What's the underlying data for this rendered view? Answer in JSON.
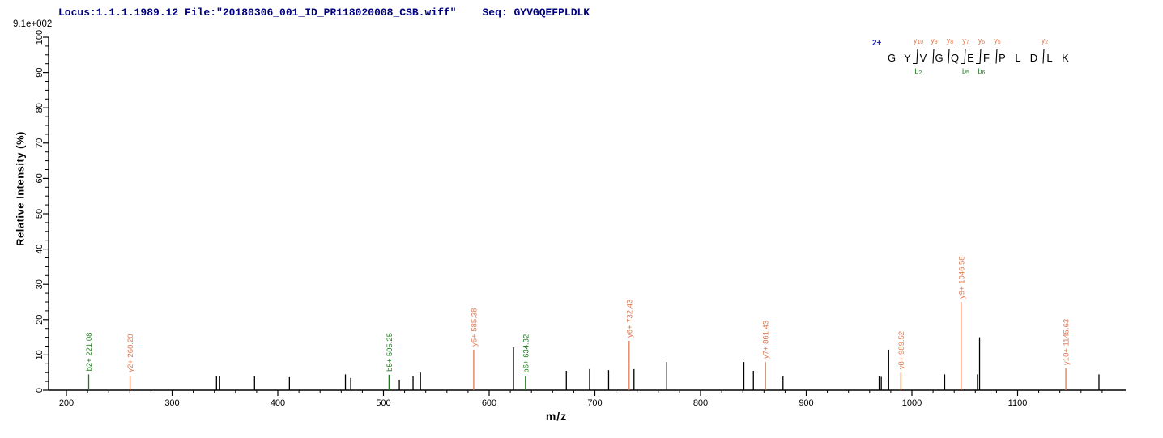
{
  "header": {
    "locus_file": "Locus:1.1.1.1989.12 File:\"20180306_001_ID_PR118020008_CSB.wiff\"",
    "seq": "Seq: GYVGQEFPLDLK"
  },
  "colors": {
    "header_text": "#000080",
    "y_ion": "#E07B52",
    "b_ion": "#1E7D1E",
    "peak": "#000000",
    "axis": "#000000",
    "charge_label": "#2222CC"
  },
  "peptide": {
    "charge": "2+",
    "residues": [
      "G",
      "Y",
      "V",
      "G",
      "Q",
      "E",
      "F",
      "P",
      "L",
      "D",
      "L",
      "K"
    ],
    "fragments": [
      {
        "bond": 2,
        "y_ion": "y10",
        "b_ion": "b2"
      },
      {
        "bond": 3,
        "y_ion": "y9"
      },
      {
        "bond": 4,
        "y_ion": "y8"
      },
      {
        "bond": 5,
        "y_ion": "y7",
        "b_ion": "b5"
      },
      {
        "bond": 6,
        "y_ion": "y6",
        "b_ion": "b6"
      },
      {
        "bond": 7,
        "y_ion": "y5"
      },
      {
        "bond": 10,
        "y_ion": "y2"
      }
    ]
  },
  "chart_data": {
    "type": "bar",
    "subtype": "ms2-stick-spectrum",
    "xlabel": "m/z",
    "ylabel": "Relative  Intensity (%)",
    "max_intensity_label": "9.1e+002",
    "xlim": [
      183,
      1194
    ],
    "ylim": [
      0,
      100
    ],
    "x_major_ticks": [
      200,
      300,
      400,
      500,
      600,
      700,
      800,
      900,
      1000,
      1100
    ],
    "x_minor_tick_step": 20,
    "y_major_ticks": [
      0,
      10,
      20,
      30,
      40,
      50,
      60,
      70,
      80,
      90,
      100
    ],
    "y_minor_tick_step": 2.5,
    "grid": false,
    "legend": false,
    "fragment_peaks": [
      {
        "label": "b2+ 221.08",
        "series": "b",
        "mz": 221.08,
        "intensity": 4.5
      },
      {
        "label": "y2+ 260.20",
        "series": "y",
        "mz": 260.2,
        "intensity": 4.2
      },
      {
        "label": "b5+ 505.25",
        "series": "b",
        "mz": 505.25,
        "intensity": 4.4
      },
      {
        "label": "y5+ 585.38",
        "series": "y",
        "mz": 585.38,
        "intensity": 11.5
      },
      {
        "label": "b6+ 634.32",
        "series": "b",
        "mz": 634.32,
        "intensity": 4.0
      },
      {
        "label": "y6+ 732.43",
        "series": "y",
        "mz": 732.43,
        "intensity": 14.0
      },
      {
        "label": "y7+ 861.43",
        "series": "y",
        "mz": 861.43,
        "intensity": 8.0
      },
      {
        "label": "y8+ 989.52",
        "series": "y",
        "mz": 989.52,
        "intensity": 5.0
      },
      {
        "label": "y9+ 1046.58",
        "series": "y",
        "mz": 1046.58,
        "intensity": 25.0
      },
      {
        "label": "y10+ 1145.63",
        "series": "y",
        "mz": 1145.63,
        "intensity": 6.2
      }
    ],
    "unlabeled_peaks": [
      [
        342,
        4.0
      ],
      [
        345,
        4.0
      ],
      [
        378,
        4.0
      ],
      [
        411,
        3.7
      ],
      [
        464,
        4.5
      ],
      [
        469,
        3.5
      ],
      [
        515,
        3.0
      ],
      [
        528,
        4.0
      ],
      [
        535,
        5.0
      ],
      [
        623,
        12.2
      ],
      [
        673,
        5.5
      ],
      [
        695,
        6.0
      ],
      [
        713,
        5.7
      ],
      [
        737,
        6.0
      ],
      [
        768,
        8.0
      ],
      [
        841,
        8.0
      ],
      [
        850,
        5.5
      ],
      [
        878,
        4.0
      ],
      [
        969,
        4.0
      ],
      [
        971,
        3.8
      ],
      [
        978,
        11.5
      ],
      [
        1031,
        4.5
      ],
      [
        1062,
        4.5
      ],
      [
        1064,
        15.0
      ],
      [
        1177,
        4.5
      ]
    ]
  }
}
